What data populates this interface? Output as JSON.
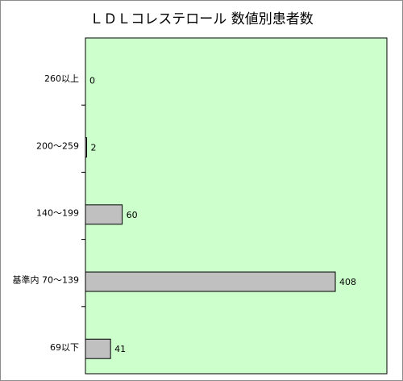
{
  "chart_data": {
    "type": "bar",
    "orientation": "horizontal",
    "title": "ＬＤＬコレステロール 数値別患者数",
    "categories": [
      "260以上",
      "200～259",
      "140～199",
      "基準内 70～139",
      "69以下"
    ],
    "values": [
      0,
      2,
      60,
      408,
      41
    ],
    "xlabel": "",
    "ylabel": "",
    "xlim": [
      0,
      500
    ],
    "grid": false,
    "legend": "none",
    "colors": {
      "plot_background": "#ccffcc",
      "bar_fill": "#c0c0c0",
      "bar_stroke": "#000000"
    }
  }
}
